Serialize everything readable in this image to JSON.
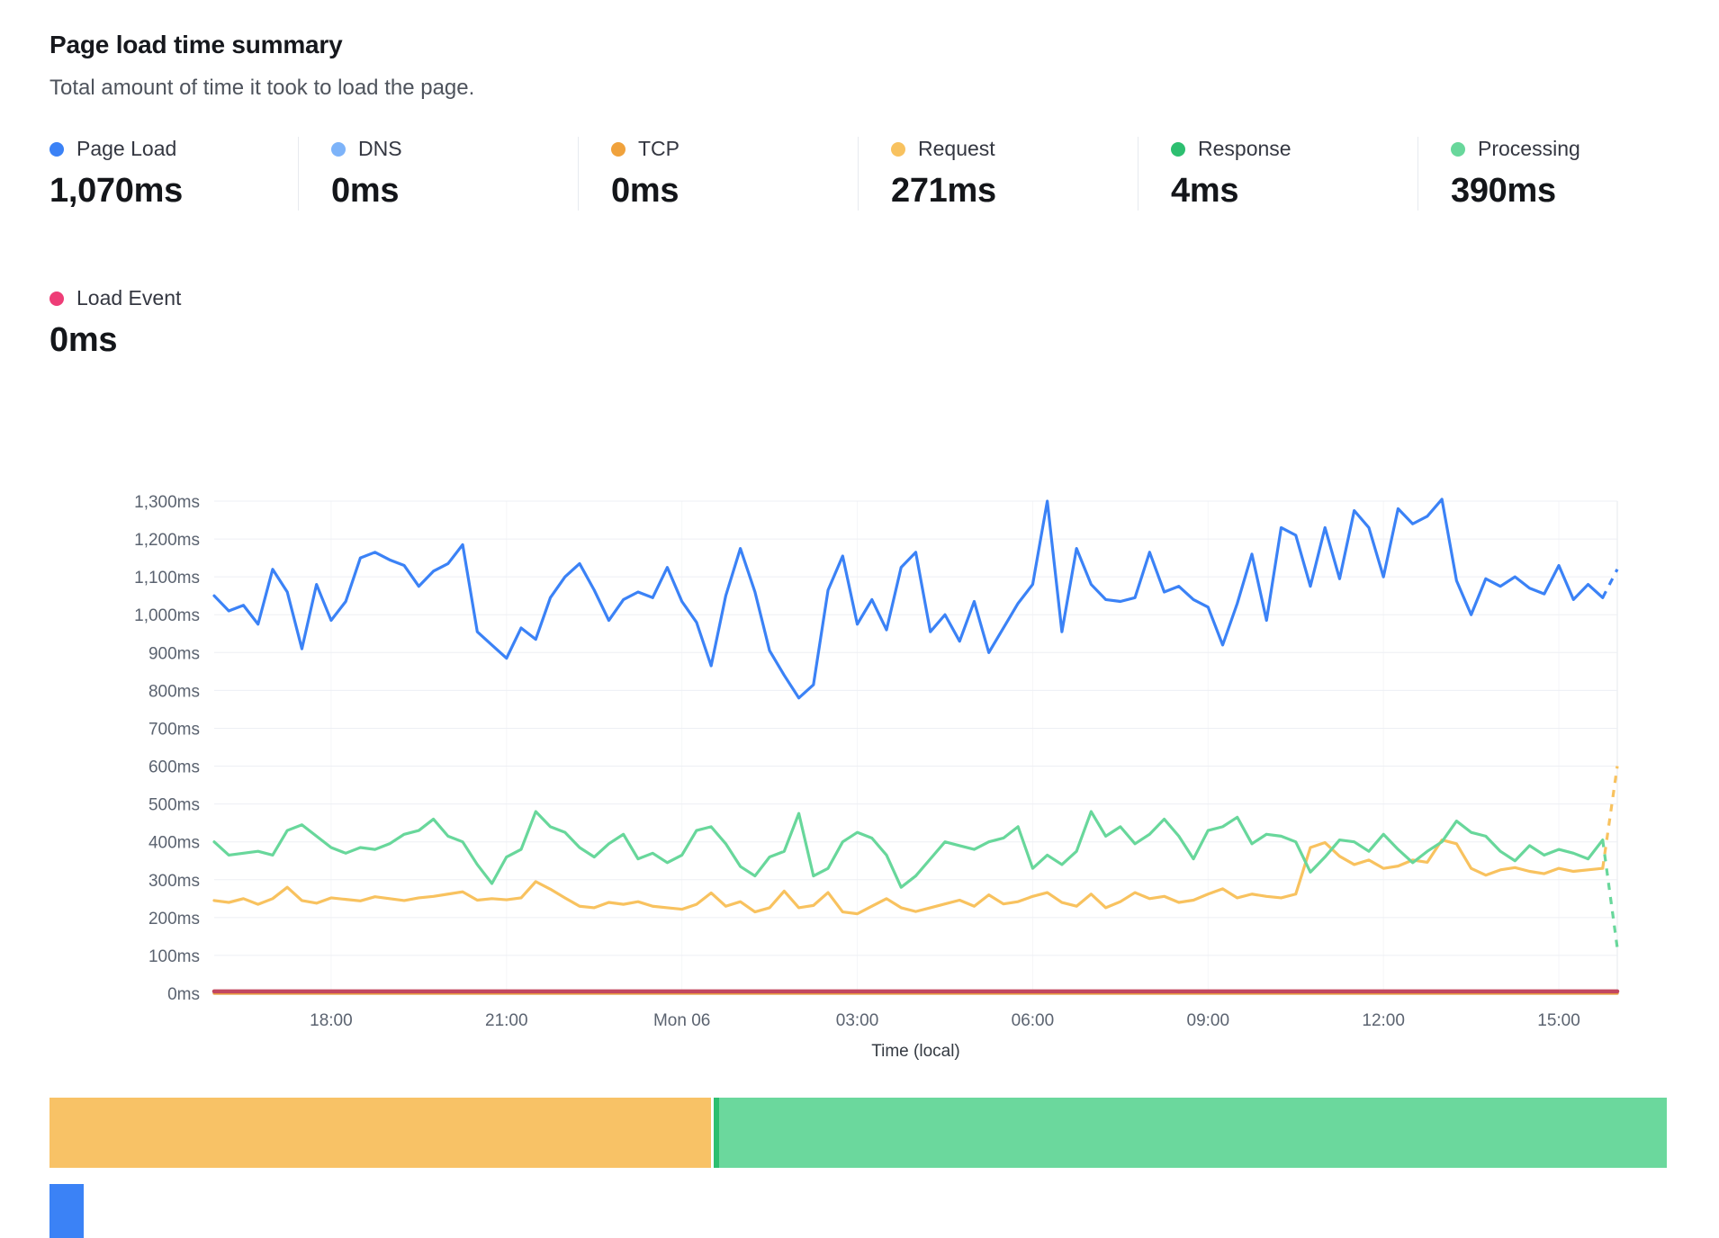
{
  "header": {
    "title": "Page load time summary",
    "subtitle": "Total amount of time it took to load the page."
  },
  "metrics": [
    {
      "label": "Page Load",
      "value": "1,070ms",
      "color": "#3b82f6"
    },
    {
      "label": "DNS",
      "value": "0ms",
      "color": "#7db3f9"
    },
    {
      "label": "TCP",
      "value": "0ms",
      "color": "#f0a23c"
    },
    {
      "label": "Request",
      "value": "271ms",
      "color": "#f8c25f"
    },
    {
      "label": "Response",
      "value": "4ms",
      "color": "#2dbf70"
    },
    {
      "label": "Processing",
      "value": "390ms",
      "color": "#68d79b"
    }
  ],
  "metrics_row2": [
    {
      "label": "Load Event",
      "value": "0ms",
      "color": "#ee3d77"
    }
  ],
  "chart_data": {
    "type": "line",
    "title": "Page load time summary",
    "xlabel": "Time (local)",
    "ylabel": "",
    "ylim": [
      0,
      1300
    ],
    "y_tick_step": 100,
    "y_tick_labels": [
      "0ms",
      "100ms",
      "200ms",
      "300ms",
      "400ms",
      "500ms",
      "600ms",
      "700ms",
      "800ms",
      "900ms",
      "1,000ms",
      "1,100ms",
      "1,200ms",
      "1,300ms"
    ],
    "x_tick_indices": [
      8,
      20,
      32,
      44,
      56,
      68,
      80,
      92
    ],
    "x_tick_labels": [
      "18:00",
      "21:00",
      "Mon 06",
      "03:00",
      "06:00",
      "09:00",
      "12:00",
      "15:00"
    ],
    "point_count": 97,
    "grid": true,
    "legend_position": "top",
    "series": [
      {
        "name": "Request",
        "color": "#f8c25f",
        "dashed_tail": true,
        "values": [
          245,
          240,
          250,
          235,
          250,
          280,
          245,
          238,
          252,
          248,
          244,
          255,
          250,
          245,
          252,
          256,
          262,
          268,
          246,
          250,
          247,
          252,
          295,
          275,
          252,
          230,
          226,
          240,
          235,
          242,
          230,
          226,
          222,
          235,
          265,
          230,
          242,
          215,
          226,
          270,
          226,
          232,
          266,
          215,
          210,
          230,
          250,
          226,
          216,
          226,
          236,
          246,
          230,
          260,
          236,
          242,
          256,
          266,
          240,
          230,
          262,
          226,
          242,
          266,
          250,
          256,
          240,
          246,
          262,
          276,
          252,
          262,
          256,
          252,
          262,
          385,
          398,
          362,
          340,
          352,
          330,
          336,
          352,
          346,
          405,
          395,
          330,
          312,
          326,
          332,
          322,
          316,
          330,
          322,
          326,
          330,
          600
        ]
      },
      {
        "name": "Processing",
        "color": "#68d79b",
        "dashed_tail": true,
        "values": [
          400,
          365,
          370,
          375,
          365,
          430,
          445,
          415,
          385,
          370,
          385,
          380,
          395,
          420,
          430,
          460,
          415,
          400,
          340,
          290,
          360,
          380,
          480,
          440,
          425,
          385,
          360,
          395,
          420,
          355,
          370,
          345,
          365,
          430,
          440,
          395,
          335,
          310,
          360,
          375,
          475,
          310,
          330,
          400,
          425,
          410,
          365,
          280,
          310,
          355,
          400,
          390,
          380,
          400,
          410,
          440,
          330,
          365,
          340,
          375,
          480,
          415,
          440,
          395,
          420,
          460,
          415,
          355,
          430,
          440,
          465,
          395,
          420,
          415,
          400,
          320,
          360,
          405,
          400,
          375,
          420,
          380,
          345,
          375,
          400,
          455,
          425,
          415,
          375,
          350,
          390,
          365,
          380,
          370,
          355,
          405,
          120
        ]
      },
      {
        "name": "Page Load",
        "color": "#3b82f6",
        "dashed_tail": true,
        "values": [
          1050,
          1010,
          1025,
          975,
          1120,
          1060,
          910,
          1080,
          985,
          1035,
          1150,
          1165,
          1145,
          1130,
          1075,
          1115,
          1135,
          1185,
          955,
          920,
          885,
          965,
          935,
          1045,
          1100,
          1135,
          1065,
          985,
          1040,
          1060,
          1045,
          1125,
          1035,
          980,
          865,
          1050,
          1175,
          1060,
          905,
          840,
          780,
          815,
          1065,
          1155,
          975,
          1040,
          960,
          1125,
          1165,
          955,
          1000,
          930,
          1035,
          900,
          965,
          1030,
          1080,
          1300,
          955,
          1175,
          1080,
          1040,
          1035,
          1045,
          1165,
          1060,
          1075,
          1040,
          1020,
          920,
          1030,
          1160,
          985,
          1230,
          1210,
          1075,
          1230,
          1095,
          1275,
          1230,
          1100,
          1280,
          1240,
          1260,
          1305,
          1090,
          1000,
          1095,
          1075,
          1100,
          1070,
          1055,
          1130,
          1040,
          1080,
          1045,
          1120
        ]
      },
      {
        "name": "DNS",
        "color": "#7db3f9",
        "constant": 0
      },
      {
        "name": "TCP",
        "color": "#f0a23c",
        "constant": 0
      },
      {
        "name": "Load Event",
        "color": "#c2485f",
        "constant": 5,
        "width": 4.5
      }
    ]
  },
  "breakdown_bar": {
    "segments": [
      {
        "color": "#f8c266",
        "percent": 40.9
      },
      {
        "color": "#ffffff",
        "percent": 0.15
      },
      {
        "color": "#2dbf70",
        "percent": 0.35
      },
      {
        "color": "#6bd89d",
        "percent": 58.6
      }
    ]
  },
  "partial_bar": {
    "color": "#3b82f6"
  }
}
